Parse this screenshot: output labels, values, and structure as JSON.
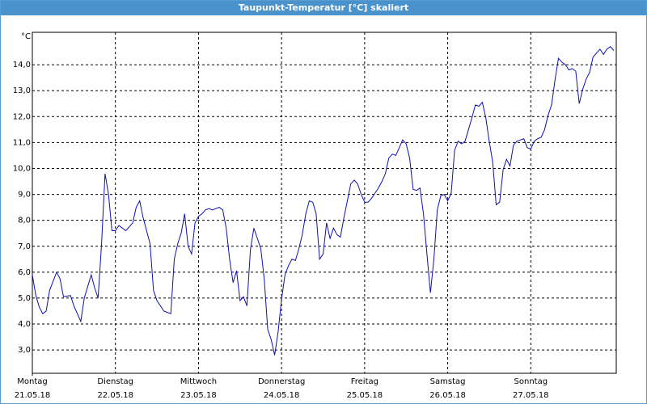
{
  "chart_data": {
    "type": "line",
    "title": "Taupunkt-Temperatur [°C] skaliert",
    "y_label": "°C",
    "color": "#1010b0",
    "grid": true,
    "xlim": [
      0,
      168.7
    ],
    "ylim": [
      2.1,
      15.25
    ],
    "xticks": [
      {
        "value": 0,
        "label": [
          "Montag",
          "21.05.18"
        ]
      },
      {
        "value": 24,
        "label": [
          "Dienstag",
          "22.05.18"
        ]
      },
      {
        "value": 48,
        "label": [
          "Mittwoch",
          "23.05.18"
        ]
      },
      {
        "value": 72,
        "label": [
          "Donnerstag",
          "24.05.18"
        ]
      },
      {
        "value": 96,
        "label": [
          "Freitag",
          "25.05.18"
        ]
      },
      {
        "value": 120,
        "label": [
          "Samstag",
          "26.05.18"
        ]
      },
      {
        "value": 144,
        "label": [
          "Sonntag",
          "27.05.18"
        ]
      }
    ],
    "yticks": [
      {
        "value": 3,
        "label": "3,0"
      },
      {
        "value": 4,
        "label": "4,0"
      },
      {
        "value": 5,
        "label": "5,0"
      },
      {
        "value": 6,
        "label": "6,0"
      },
      {
        "value": 7,
        "label": "7,0"
      },
      {
        "value": 8,
        "label": "8,0"
      },
      {
        "value": 9,
        "label": "9,0"
      },
      {
        "value": 10,
        "label": "10,0"
      },
      {
        "value": 11,
        "label": "11,0"
      },
      {
        "value": 12,
        "label": "12,0"
      },
      {
        "value": 13,
        "label": "13,0"
      },
      {
        "value": 14,
        "label": "14,0"
      }
    ],
    "x": [
      0,
      1,
      2,
      3,
      4,
      5,
      7,
      8,
      9,
      11,
      12,
      14,
      15,
      17,
      18,
      19,
      20,
      21,
      22,
      23,
      24,
      25,
      26,
      27,
      28,
      29,
      30,
      31,
      32,
      34,
      35,
      36,
      38,
      39,
      40,
      41,
      42,
      43,
      44,
      45,
      46,
      47,
      48,
      49,
      50,
      51,
      52,
      53,
      54,
      55,
      56,
      57,
      58,
      59,
      60,
      61,
      62,
      63,
      64,
      65,
      66,
      67,
      68,
      69,
      70,
      71,
      72,
      73,
      74,
      75,
      76,
      77,
      78,
      79,
      80,
      81,
      82,
      83,
      84,
      85,
      86,
      87,
      88,
      89,
      90,
      91,
      92,
      93,
      94,
      95,
      96,
      97,
      98,
      99,
      100,
      101,
      102,
      103,
      104,
      105,
      106,
      107,
      108,
      109,
      110,
      111,
      112,
      113,
      114,
      115,
      116,
      117,
      118,
      119,
      120,
      121,
      122,
      123,
      124,
      125,
      126,
      127,
      128,
      129,
      130,
      131,
      132,
      133,
      134,
      135,
      136,
      137,
      138,
      139,
      140,
      141,
      142,
      143,
      144,
      145,
      146,
      147,
      148,
      149,
      150,
      151,
      152,
      153,
      154,
      155,
      156,
      157,
      158,
      159,
      160,
      161,
      162,
      163,
      164,
      165,
      166,
      167,
      168
    ],
    "values": [
      5.9,
      5.1,
      4.65,
      4.4,
      4.5,
      5.3,
      6.0,
      5.75,
      5.05,
      5.1,
      4.7,
      4.1,
      5.0,
      5.9,
      5.4,
      5.0,
      7.1,
      9.8,
      9.0,
      7.6,
      7.6,
      7.8,
      7.7,
      7.6,
      7.75,
      7.9,
      8.5,
      8.75,
      8.1,
      7.1,
      5.3,
      4.9,
      4.5,
      4.45,
      4.4,
      6.5,
      7.1,
      7.5,
      8.25,
      7.0,
      6.7,
      7.9,
      8.15,
      8.25,
      8.4,
      8.45,
      8.4,
      8.45,
      8.5,
      8.4,
      7.7,
      6.5,
      5.6,
      6.05,
      4.9,
      5.05,
      4.7,
      6.85,
      7.7,
      7.3,
      6.9,
      5.75,
      3.8,
      3.4,
      2.8,
      3.7,
      4.95,
      5.9,
      6.25,
      6.5,
      6.45,
      6.9,
      7.45,
      8.25,
      8.75,
      8.7,
      8.25,
      6.5,
      6.7,
      7.9,
      7.3,
      7.7,
      7.45,
      7.35,
      8.1,
      8.75,
      9.4,
      9.55,
      9.4,
      9.0,
      8.7,
      8.7,
      8.85,
      9.05,
      9.25,
      9.5,
      9.8,
      10.4,
      10.55,
      10.5,
      10.8,
      11.1,
      10.95,
      10.4,
      9.2,
      9.15,
      9.25,
      8.25,
      6.7,
      5.2,
      6.5,
      8.4,
      8.95,
      9.0,
      8.75,
      9.05,
      10.7,
      11.05,
      10.95,
      11.05,
      11.5,
      11.95,
      12.45,
      12.4,
      12.55,
      11.95,
      11.05,
      10.25,
      8.6,
      8.7,
      9.95,
      10.35,
      10.1,
      10.9,
      11.05,
      11.1,
      11.15,
      10.8,
      10.75,
      11.05,
      11.15,
      11.2,
      11.5,
      12.05,
      12.45,
      13.4,
      14.25,
      14.1,
      14.0,
      13.8,
      13.85,
      13.75,
      12.5,
      13.05,
      13.45,
      13.7,
      14.3,
      14.45,
      14.6,
      14.4,
      14.6,
      14.7,
      14.55
    ]
  }
}
